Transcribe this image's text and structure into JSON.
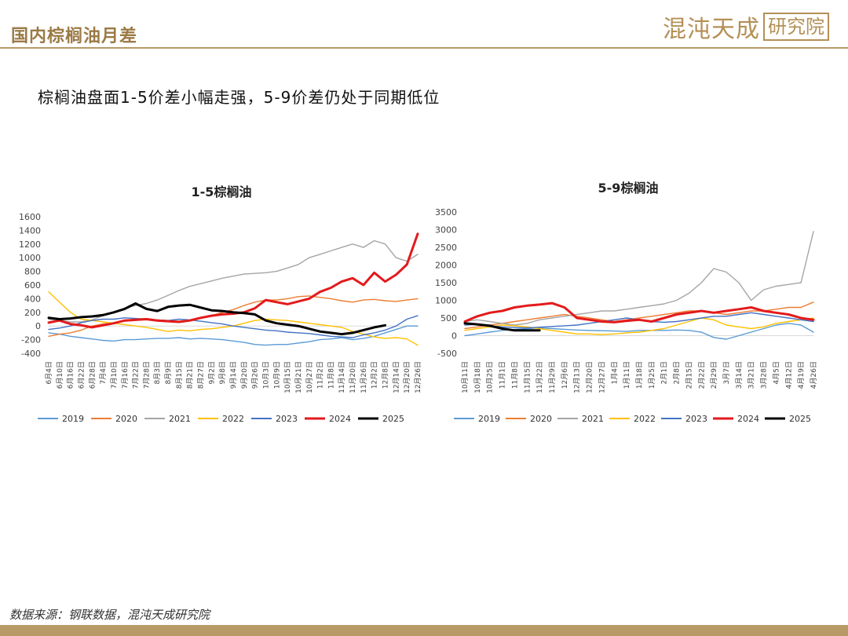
{
  "header": {
    "title": "国内棕榈油月差"
  },
  "logo": {
    "main": "混沌天成",
    "box": "研究院"
  },
  "subtitle": "棕榈油盘面1-5价差小幅走强，5-9价差仍处于同期低位",
  "source": "数据来源：钢联数据，混沌天成研究院",
  "colors": {
    "2019": "#5b9bd5",
    "2020": "#ed7d31",
    "2021": "#a5a5a5",
    "2022": "#ffc000",
    "2023": "#4472c4",
    "2024": "#e31a1c",
    "2025": "#000000"
  },
  "chart_data": [
    {
      "type": "line",
      "title": "1-5棕榈油",
      "ylim": [
        -400,
        1600
      ],
      "yticks": [
        -400,
        -200,
        0,
        200,
        400,
        600,
        800,
        1000,
        1200,
        1400,
        1600
      ],
      "grid": false,
      "legend_position": "bottom",
      "categories": [
        "6月4日",
        "6月10日",
        "6月16日",
        "6月22日",
        "6月28日",
        "7月4日",
        "7月10日",
        "7月16日",
        "7月22日",
        "7月28日",
        "8月3日",
        "8月9日",
        "8月15日",
        "8月21日",
        "8月27日",
        "9月2日",
        "9月8日",
        "9月14日",
        "9月20日",
        "9月26日",
        "10月3日",
        "10月9日",
        "10月15日",
        "10月21日",
        "10月27日",
        "11月2日",
        "11月8日",
        "11月14日",
        "11月20日",
        "11月26日",
        "12月2日",
        "12月8日",
        "12月14日",
        "12月20日",
        "12月26日"
      ],
      "series": [
        {
          "name": "2019",
          "values": [
            -100,
            -120,
            -150,
            -170,
            -190,
            -210,
            -220,
            -200,
            -200,
            -190,
            -180,
            -180,
            -170,
            -190,
            -180,
            -190,
            -200,
            -220,
            -240,
            -270,
            -280,
            -270,
            -270,
            -250,
            -230,
            -200,
            -190,
            -170,
            -200,
            -180,
            -150,
            -100,
            -50,
            0,
            0
          ]
        },
        {
          "name": "2020",
          "values": [
            -150,
            -120,
            -100,
            -60,
            0,
            30,
            50,
            80,
            100,
            110,
            90,
            80,
            70,
            80,
            120,
            150,
            200,
            240,
            300,
            350,
            380,
            380,
            400,
            430,
            440,
            420,
            400,
            370,
            350,
            380,
            390,
            370,
            360,
            380,
            400
          ]
        },
        {
          "name": "2021",
          "values": [
            100,
            80,
            60,
            60,
            90,
            150,
            200,
            260,
            300,
            330,
            380,
            450,
            520,
            580,
            620,
            660,
            700,
            730,
            760,
            770,
            780,
            800,
            850,
            900,
            1000,
            1050,
            1100,
            1150,
            1200,
            1150,
            1250,
            1200,
            1000,
            950,
            1050
          ]
        },
        {
          "name": "2022",
          "values": [
            500,
            350,
            200,
            100,
            80,
            60,
            40,
            20,
            0,
            -20,
            -50,
            -80,
            -60,
            -70,
            -50,
            -40,
            -20,
            0,
            40,
            80,
            100,
            90,
            80,
            60,
            40,
            20,
            0,
            -20,
            -80,
            -120,
            -160,
            -180,
            -170,
            -190,
            -280
          ]
        },
        {
          "name": "2023",
          "values": [
            -50,
            -30,
            0,
            50,
            80,
            100,
            100,
            120,
            110,
            100,
            90,
            80,
            100,
            90,
            70,
            50,
            30,
            0,
            -20,
            -40,
            -60,
            -70,
            -90,
            -100,
            -110,
            -130,
            -150,
            -160,
            -170,
            -130,
            -100,
            -60,
            0,
            100,
            150
          ]
        },
        {
          "name": "2024",
          "values": [
            50,
            80,
            30,
            10,
            -20,
            10,
            40,
            80,
            90,
            100,
            80,
            70,
            60,
            80,
            120,
            150,
            170,
            180,
            200,
            260,
            380,
            350,
            320,
            360,
            400,
            500,
            560,
            650,
            700,
            600,
            780,
            650,
            750,
            900,
            1350
          ]
        },
        {
          "name": "2025",
          "values": [
            120,
            100,
            110,
            130,
            140,
            160,
            200,
            250,
            330,
            250,
            220,
            280,
            300,
            310,
            270,
            230,
            220,
            200,
            190,
            170,
            80,
            40,
            20,
            0,
            -40,
            -80,
            -100,
            -120,
            -100,
            -60,
            -20,
            10,
            null,
            null,
            null
          ]
        }
      ]
    },
    {
      "type": "line",
      "title": "5-9棕榈油",
      "ylim": [
        -500,
        3500
      ],
      "yticks": [
        -500,
        0,
        500,
        1000,
        1500,
        2000,
        2500,
        3000,
        3500
      ],
      "grid": false,
      "legend_position": "bottom",
      "categories": [
        "10月11日",
        "10月18日",
        "10月25日",
        "11月1日",
        "11月8日",
        "11月15日",
        "11月22日",
        "11月29日",
        "12月6日",
        "12月13日",
        "12月20日",
        "12月27日",
        "1月4日",
        "1月11日",
        "1月18日",
        "1月25日",
        "2月1日",
        "2月8日",
        "2月15日",
        "2月22日",
        "2月29日",
        "3月7日",
        "3月14日",
        "3月21日",
        "3月28日",
        "4月5日",
        "4月12日",
        "4月19日",
        "4月26日"
      ],
      "series": [
        {
          "name": "2019",
          "values": [
            0,
            50,
            100,
            150,
            180,
            200,
            220,
            200,
            180,
            160,
            150,
            140,
            130,
            120,
            150,
            150,
            150,
            160,
            150,
            100,
            -50,
            -100,
            0,
            100,
            200,
            300,
            350,
            300,
            100
          ]
        },
        {
          "name": "2020",
          "values": [
            200,
            250,
            300,
            350,
            400,
            450,
            500,
            550,
            600,
            550,
            500,
            450,
            400,
            450,
            500,
            550,
            600,
            650,
            700,
            700,
            650,
            600,
            650,
            700,
            700,
            750,
            800,
            800,
            950
          ]
        },
        {
          "name": "2021",
          "values": [
            400,
            450,
            400,
            350,
            300,
            350,
            450,
            500,
            550,
            600,
            650,
            700,
            700,
            750,
            800,
            850,
            900,
            1000,
            1200,
            1500,
            1900,
            1800,
            1500,
            1000,
            1300,
            1400,
            1450,
            1500,
            2950
          ]
        },
        {
          "name": "2022",
          "values": [
            150,
            200,
            250,
            300,
            280,
            250,
            200,
            150,
            100,
            50,
            50,
            30,
            50,
            80,
            100,
            150,
            200,
            300,
            400,
            500,
            450,
            300,
            250,
            200,
            250,
            350,
            400,
            450,
            500
          ]
        },
        {
          "name": "2023",
          "values": [
            300,
            320,
            280,
            250,
            230,
            220,
            240,
            260,
            280,
            300,
            350,
            400,
            450,
            500,
            450,
            400,
            380,
            400,
            450,
            500,
            550,
            550,
            600,
            650,
            600,
            550,
            500,
            450,
            400
          ]
        },
        {
          "name": "2024",
          "values": [
            400,
            550,
            650,
            700,
            800,
            850,
            880,
            920,
            800,
            500,
            450,
            400,
            380,
            420,
            450,
            400,
            500,
            600,
            650,
            700,
            650,
            700,
            750,
            800,
            700,
            650,
            600,
            500,
            450
          ]
        },
        {
          "name": "2025",
          "values": [
            350,
            320,
            280,
            200,
            150,
            150,
            150,
            null,
            null,
            null,
            null,
            null,
            null,
            null,
            null,
            null,
            null,
            null,
            null,
            null,
            null,
            null,
            null,
            null,
            null,
            null,
            null,
            null,
            null
          ]
        }
      ]
    }
  ]
}
